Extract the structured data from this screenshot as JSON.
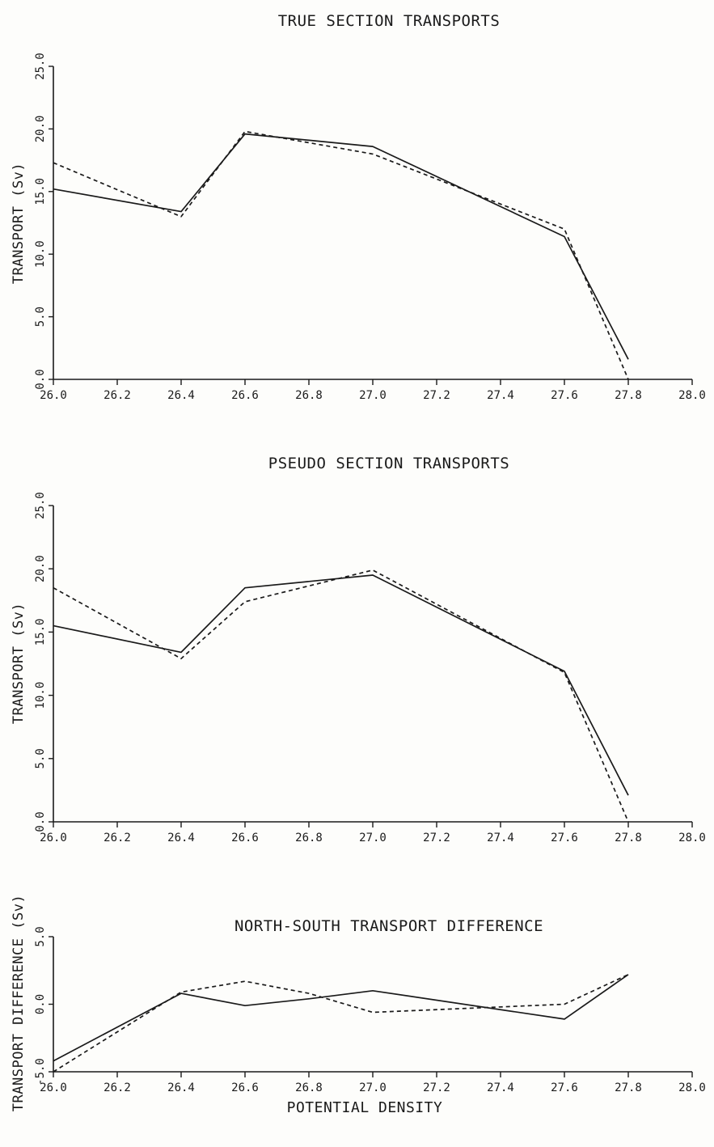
{
  "chart_data": [
    {
      "type": "line",
      "title": "TRUE SECTION TRANSPORTS",
      "xlabel": "",
      "ylabel": "TRANSPORT (Sv)",
      "xlim": [
        26.0,
        28.0
      ],
      "ylim": [
        0.0,
        25.0
      ],
      "xticks": [
        "26.0",
        "26.2",
        "26.4",
        "26.6",
        "26.8",
        "27.0",
        "27.2",
        "27.4",
        "27.6",
        "27.8",
        "28.0"
      ],
      "yticks": [
        "0.0",
        "5.0",
        "10.0",
        "15.0",
        "20.0",
        "25.0"
      ],
      "grid": false,
      "series": [
        {
          "style": "solid",
          "x": [
            26.0,
            26.4,
            26.6,
            27.0,
            27.6,
            27.8
          ],
          "y": [
            15.2,
            13.4,
            19.6,
            18.6,
            11.4,
            1.6
          ]
        },
        {
          "style": "dashed",
          "x": [
            26.0,
            26.4,
            26.6,
            27.0,
            27.6,
            27.8
          ],
          "y": [
            17.3,
            13.0,
            19.8,
            18.0,
            12.0,
            0.0
          ]
        }
      ]
    },
    {
      "type": "line",
      "title": "PSEUDO SECTION TRANSPORTS",
      "xlabel": "",
      "ylabel": "TRANSPORT (Sv)",
      "xlim": [
        26.0,
        28.0
      ],
      "ylim": [
        0.0,
        25.0
      ],
      "xticks": [
        "26.0",
        "26.2",
        "26.4",
        "26.6",
        "26.8",
        "27.0",
        "27.2",
        "27.4",
        "27.6",
        "27.8",
        "28.0"
      ],
      "yticks": [
        "0.0",
        "5.0",
        "10.0",
        "15.0",
        "20.0",
        "25.0"
      ],
      "grid": false,
      "series": [
        {
          "style": "solid",
          "x": [
            26.0,
            26.4,
            26.6,
            27.0,
            27.6,
            27.8
          ],
          "y": [
            15.5,
            13.4,
            18.5,
            19.5,
            11.9,
            2.1
          ]
        },
        {
          "style": "dashed",
          "x": [
            26.0,
            26.4,
            26.6,
            27.0,
            27.6,
            27.8
          ],
          "y": [
            18.5,
            12.9,
            17.4,
            19.9,
            11.8,
            0.0
          ]
        }
      ]
    },
    {
      "type": "line",
      "title": "NORTH-SOUTH TRANSPORT DIFFERENCE",
      "xlabel": "POTENTIAL DENSITY",
      "ylabel": "TRANSPORT DIFFERENCE (Sv)",
      "xlim": [
        26.0,
        28.0
      ],
      "ylim": [
        -5.0,
        5.0
      ],
      "xticks": [
        "26.0",
        "26.2",
        "26.4",
        "26.6",
        "26.8",
        "27.0",
        "27.2",
        "27.4",
        "27.6",
        "27.8",
        "28.0"
      ],
      "yticks": [
        "-5.0",
        "0.0",
        "5.0"
      ],
      "grid": false,
      "series": [
        {
          "style": "solid",
          "x": [
            26.0,
            26.4,
            26.6,
            26.8,
            27.0,
            27.6,
            27.8
          ],
          "y": [
            -4.2,
            0.8,
            -0.1,
            0.4,
            1.0,
            -1.1,
            2.2
          ]
        },
        {
          "style": "dashed",
          "x": [
            26.0,
            26.4,
            26.6,
            26.8,
            27.0,
            27.6,
            27.8
          ],
          "y": [
            -5.0,
            0.9,
            1.7,
            0.8,
            -0.6,
            0.0,
            2.2
          ]
        }
      ]
    }
  ]
}
